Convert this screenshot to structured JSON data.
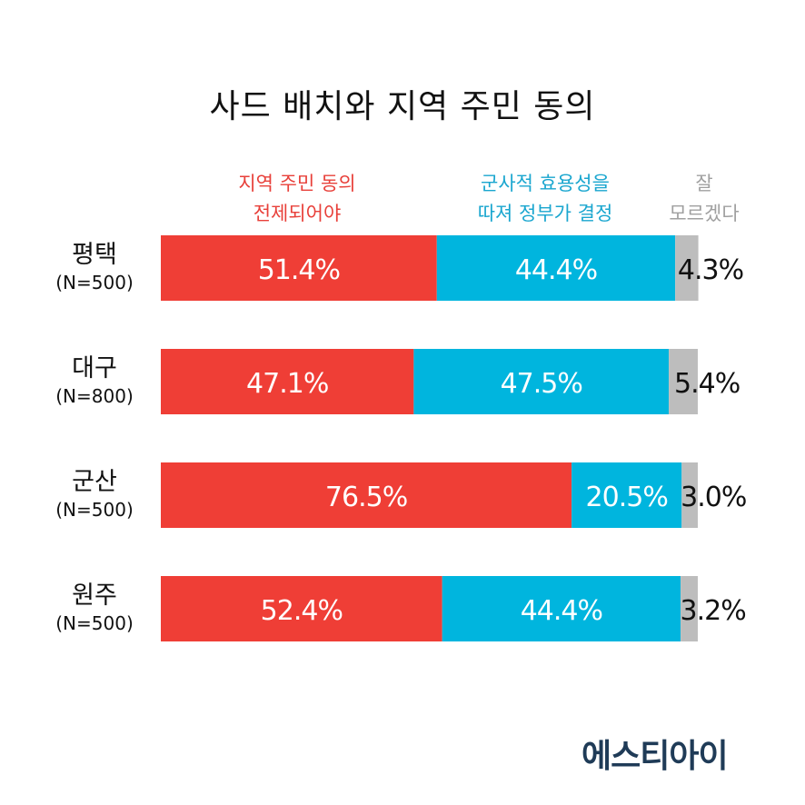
{
  "chart_data": {
    "type": "bar",
    "orientation": "horizontal",
    "stacked": true,
    "title": "사드 배치와 지역 주민 동의",
    "categories": [
      "평택",
      "대구",
      "군산",
      "원주"
    ],
    "category_notes": [
      "(N=500)",
      "(N=800)",
      "(N=500)",
      "(N=500)"
    ],
    "series": [
      {
        "name": "지역 주민 동의 전제되어야",
        "legend_lines": [
          "지역 주민 동의",
          "전제되어야"
        ],
        "values": [
          51.4,
          47.1,
          76.5,
          52.4
        ],
        "color": "#ef3e36"
      },
      {
        "name": "군사적 효용성을 따져 정부가 결정",
        "legend_lines": [
          "군사적 효용성을",
          "따져 정부가 결정"
        ],
        "values": [
          44.4,
          47.5,
          20.5,
          44.4
        ],
        "color": "#00b5de"
      },
      {
        "name": "잘 모르겠다",
        "legend_lines": [
          "잘",
          "모르겠다"
        ],
        "values": [
          4.3,
          5.4,
          3.0,
          3.2
        ],
        "color": "#bdbdbd"
      }
    ],
    "value_suffix": "%",
    "xlim": [
      0,
      100
    ],
    "grid": false,
    "legend": "top"
  },
  "source_logo": "에스티아이"
}
